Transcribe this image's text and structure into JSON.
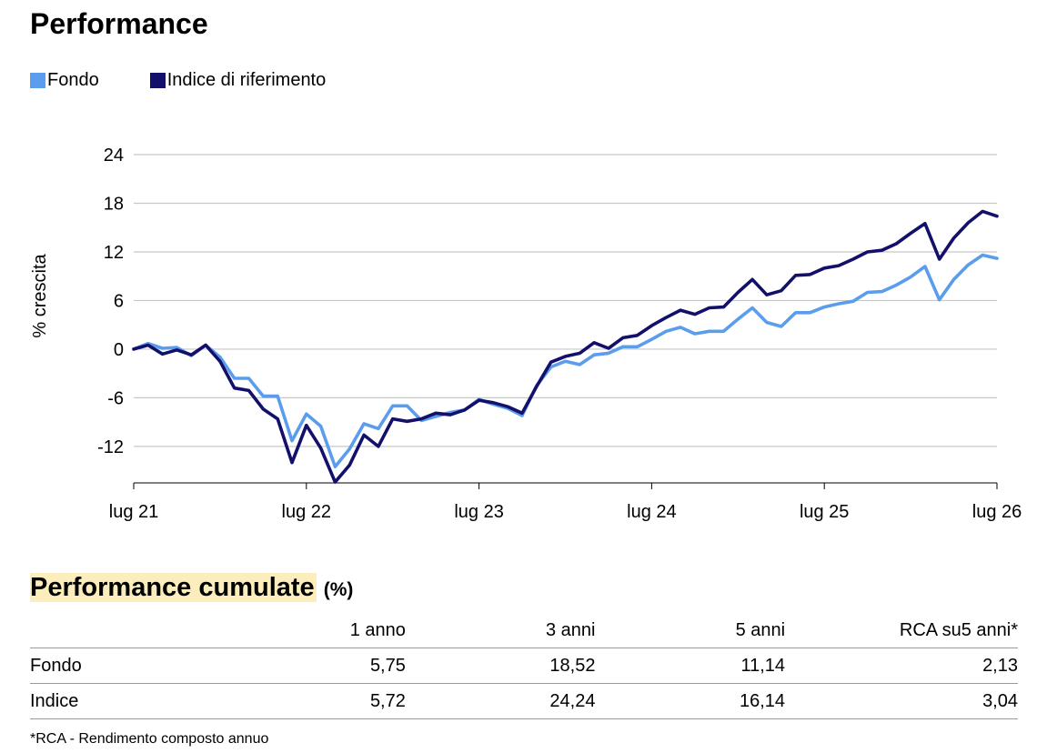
{
  "title": "Performance",
  "legend": [
    {
      "label": "Fondo",
      "color": "#5b9ded"
    },
    {
      "label": "Indice di riferimento",
      "color": "#12106b"
    }
  ],
  "chart_data": {
    "type": "line",
    "ylabel": "% crescita",
    "xlabel": "",
    "ylim": [
      -16.5,
      24
    ],
    "yticks": [
      24,
      18,
      12,
      6,
      0,
      -6,
      -12
    ],
    "xlim": [
      0,
      60
    ],
    "xticks": [
      {
        "label": "lug 21",
        "value": 0
      },
      {
        "label": "lug 22",
        "value": 12
      },
      {
        "label": "lug 23",
        "value": 24
      },
      {
        "label": "lug 24",
        "value": 36
      },
      {
        "label": "lug 25",
        "value": 48
      },
      {
        "label": "lug 26",
        "value": 60
      }
    ],
    "grid": "horizontal",
    "legend_position": "top-left",
    "series": [
      {
        "name": "Fondo",
        "color": "#5b9ded",
        "values": [
          0,
          0.7,
          0.1,
          0.2,
          -0.8,
          0.5,
          -1,
          -3.6,
          -3.6,
          -5.8,
          -5.8,
          -11.3,
          -8,
          -9.5,
          -14.5,
          -12.3,
          -9.2,
          -9.8,
          -7,
          -7,
          -8.8,
          -8.3,
          -7.8,
          -7.5,
          -6.2,
          -6.8,
          -7.3,
          -8.2,
          -4.5,
          -2.2,
          -1.5,
          -1.9,
          -0.7,
          -0.5,
          0.3,
          0.3,
          1.2,
          2.2,
          2.7,
          1.9,
          2.2,
          2.2,
          3.7,
          5.1,
          3.3,
          2.8,
          4.5,
          4.5,
          5.2,
          5.6,
          5.9,
          7,
          7.1,
          7.9,
          8.9,
          10.2,
          6.1,
          8.6,
          10.4,
          11.6,
          11.2
        ]
      },
      {
        "name": "Indice di riferimento",
        "color": "#12106b",
        "values": [
          0,
          0.5,
          -0.6,
          -0.1,
          -0.7,
          0.5,
          -1.5,
          -4.8,
          -5.1,
          -7.4,
          -8.6,
          -14,
          -9.4,
          -12.2,
          -16.4,
          -14.3,
          -10.6,
          -12,
          -8.6,
          -8.9,
          -8.6,
          -7.9,
          -8.1,
          -7.5,
          -6.3,
          -6.6,
          -7.1,
          -7.9,
          -4.6,
          -1.6,
          -0.9,
          -0.5,
          0.8,
          0.1,
          1.4,
          1.7,
          2.9,
          3.9,
          4.8,
          4.3,
          5.1,
          5.2,
          7,
          8.6,
          6.7,
          7.2,
          9.1,
          9.2,
          10,
          10.3,
          11.1,
          12,
          12.2,
          13,
          14.3,
          15.5,
          11.1,
          13.7,
          15.6,
          17,
          16.4
        ]
      }
    ]
  },
  "table": {
    "title": "Performance cumulate",
    "unit": "(%)",
    "columns": [
      "1 anno",
      "3 anni",
      "5 anni",
      "RCA su5 anni*"
    ],
    "rows": [
      {
        "name": "Fondo",
        "values": [
          "5,75",
          "18,52",
          "11,14",
          "2,13"
        ]
      },
      {
        "name": "Indice",
        "values": [
          "5,72",
          "24,24",
          "16,14",
          "3,04"
        ]
      }
    ]
  },
  "footnote": "*RCA - Rendimento composto annuo"
}
